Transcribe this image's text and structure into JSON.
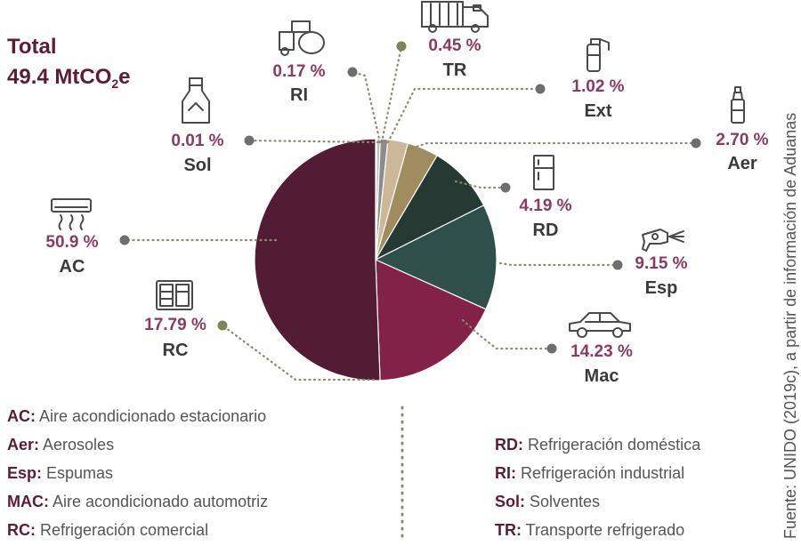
{
  "total": {
    "line1": "Total",
    "line2_main": "49.4 MtCO",
    "line2_sub": "2",
    "line2_tail": "e"
  },
  "chart_data": {
    "type": "pie",
    "value_suffix": " %",
    "slices": [
      {
        "code": "Sol",
        "value": 0.01,
        "value_label": "0.01",
        "color": "#c9c9c9",
        "icon": "milk-bottle-icon"
      },
      {
        "code": "RI",
        "value": 0.17,
        "value_label": "0.17",
        "color": "#d9d6e0",
        "icon": "industrial-tank-icon"
      },
      {
        "code": "TR",
        "value": 0.45,
        "value_label": "0.45",
        "color": "#9e9e9e",
        "icon": "refrigerated-truck-icon"
      },
      {
        "code": "Ext",
        "value": 1.02,
        "value_label": "1.02",
        "color": "#c3c3c3",
        "icon": "fire-extinguisher-icon"
      },
      {
        "code": "Aer",
        "value": 2.7,
        "value_label": "2.70",
        "color": "#8c8c8c",
        "icon": "aerosol-can-icon"
      },
      {
        "code": "RD",
        "value": 4.19,
        "value_label": "4.19",
        "color": "#ccb898",
        "icon": "refrigerator-icon"
      },
      {
        "code": "Esp",
        "value": 9.15,
        "value_label": "9.15",
        "color": "#a08c5e",
        "icon": "foam-spray-gun-icon"
      },
      {
        "code": "Mac",
        "value": 14.23,
        "value_label": "14.23",
        "color": "#263a33",
        "icon": "car-icon"
      },
      {
        "code": "RC",
        "value": 17.79,
        "value_label": "17.79",
        "color": "#2e4f4a",
        "icon": "commercial-fridge-icon"
      },
      {
        "code": "AC",
        "value": 50.9,
        "value_label": "50.9",
        "color": "#832249",
        "icon": "air-conditioner-icon"
      }
    ],
    "drawn_slices_clockwise_from_top": [
      {
        "code": "Sol",
        "value": 0.01,
        "color": "#c9c9c9"
      },
      {
        "code": "RI",
        "value": 0.17,
        "color": "#d9d6e0"
      },
      {
        "code": "TR",
        "value": 0.45,
        "color": "#bdbdbd"
      },
      {
        "code": "Ext",
        "value": 1.02,
        "color": "#8c8c8c"
      },
      {
        "code": "Aer",
        "value": 2.7,
        "color": "#ccb898"
      },
      {
        "code": "RD",
        "value": 4.19,
        "color": "#a08c5e"
      },
      {
        "code": "Esp",
        "value": 9.15,
        "color": "#263a33"
      },
      {
        "code": "Mac",
        "value": 14.23,
        "color": "#2e4f4a"
      },
      {
        "code": "RC",
        "value": 17.79,
        "color": "#832249"
      },
      {
        "code": "AC",
        "value": 50.9,
        "color": "#531c35"
      }
    ]
  },
  "colors": {
    "value_text": "#8b3a62",
    "label_text": "#3a3a3a",
    "leader_line": "#8a8a6e",
    "dot": "#6e6e6e"
  },
  "legend_left": [
    {
      "abbr": "AC:",
      "text": " Aire acondicionado estacionario"
    },
    {
      "abbr": "Aer:",
      "text": " Aerosoles"
    },
    {
      "abbr": "Esp:",
      "text": " Espumas"
    },
    {
      "abbr": "MAC:",
      "text": " Aire acondicionado automotriz"
    },
    {
      "abbr": "RC:",
      "text": " Refrigeración comercial"
    }
  ],
  "legend_right": [
    {
      "abbr": "RD:",
      "text": " Refrigeración doméstica"
    },
    {
      "abbr": "RI:",
      "text": " Refrigeración industrial"
    },
    {
      "abbr": "Sol:",
      "text": " Solventes"
    },
    {
      "abbr": "TR:",
      "text": " Transporte refrigerado"
    }
  ],
  "source": "Fuente: UNIDO (2019c), a partir de información de Aduanas"
}
